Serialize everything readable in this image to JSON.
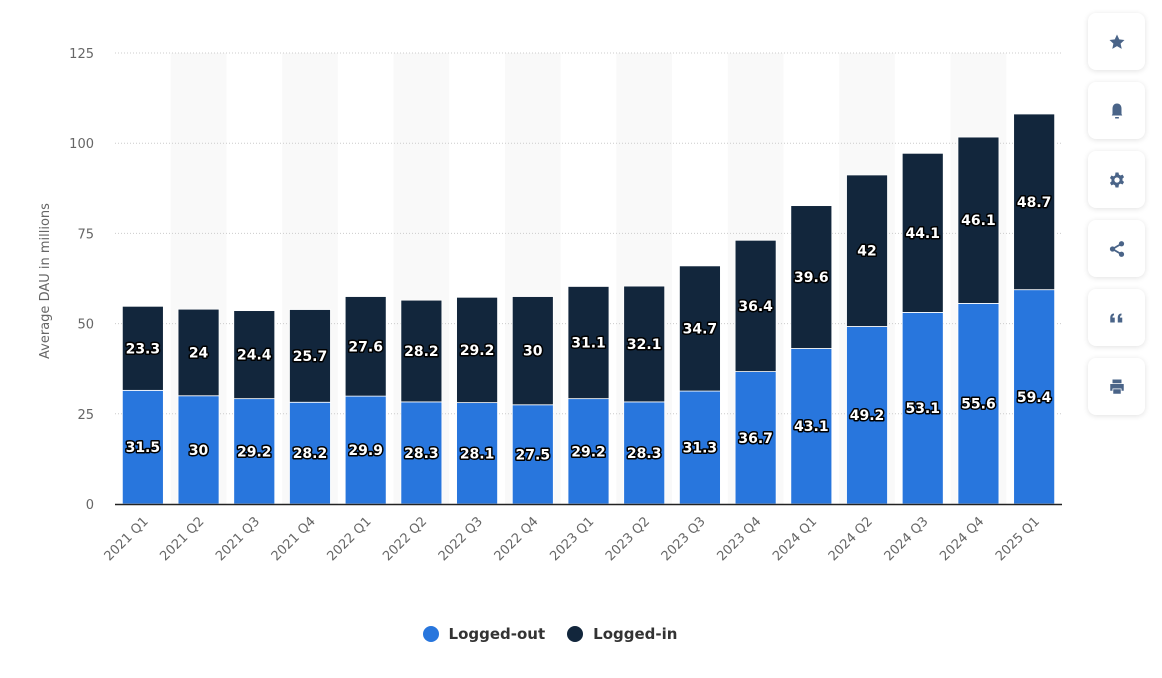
{
  "chart_data": {
    "type": "bar",
    "stacked": true,
    "categories": [
      "2021 Q1",
      "2021 Q2",
      "2021 Q3",
      "2021 Q4",
      "2022 Q1",
      "2022 Q2",
      "2022 Q3",
      "2022 Q4",
      "2023 Q1",
      "2023 Q2",
      "2023 Q3",
      "2023 Q4",
      "2024 Q1",
      "2024 Q2",
      "2024 Q3",
      "2024 Q4",
      "2025 Q1"
    ],
    "series": [
      {
        "name": "Logged-out",
        "color": "#2876dd",
        "values": [
          31.5,
          30,
          29.2,
          28.2,
          29.9,
          28.3,
          28.1,
          27.5,
          29.2,
          28.3,
          31.3,
          36.7,
          43.1,
          49.2,
          53.1,
          55.6,
          59.4
        ]
      },
      {
        "name": "Logged-in",
        "color": "#12263c",
        "values": [
          23.3,
          24,
          24.4,
          25.7,
          27.6,
          28.2,
          29.2,
          30,
          31.1,
          32.1,
          34.7,
          36.4,
          39.6,
          42,
          44.1,
          46.1,
          48.7
        ]
      }
    ],
    "ylabel": "Average DAU in millions",
    "xlabel": "",
    "ylim": [
      0,
      125
    ],
    "yticks": [
      0,
      25,
      50,
      75,
      100,
      125
    ],
    "grid": true,
    "legend": "bottom-center"
  },
  "sidebar": {
    "buttons": [
      {
        "icon": "star-icon"
      },
      {
        "icon": "bell-icon"
      },
      {
        "icon": "gear-icon"
      },
      {
        "icon": "share-icon"
      },
      {
        "icon": "quote-icon"
      },
      {
        "icon": "print-icon"
      }
    ]
  }
}
